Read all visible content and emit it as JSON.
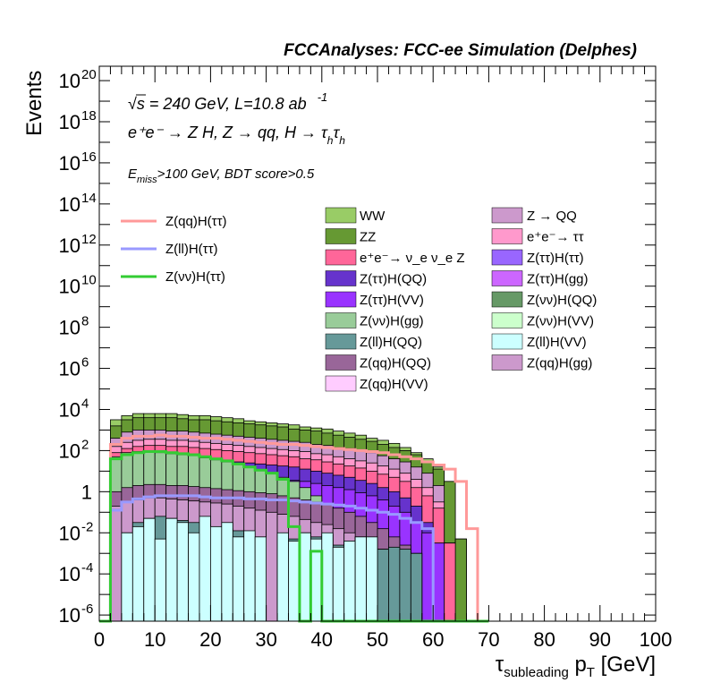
{
  "header": "FCCAnalyses: FCC-ee Simulation (Delphes)",
  "info": {
    "line1": "√s = 240 GeV, L=10.8 ab",
    "line1_sup": "-1",
    "line2": "e⁺e⁻ → Z H, Z → qq, H → τ",
    "line2_sub1": "h",
    "line2_tau": "τ",
    "line2_sub2": "h",
    "line3_pre": "E",
    "line3_sub": "miss",
    "line3_post": ">100 GeV, BDT score>0.5"
  },
  "chart_data": {
    "type": "area",
    "title": "",
    "xlabel": "τ",
    "xlabel_sub": "subleading",
    "xlabel_post": " p",
    "xlabel_sub2": "T",
    "xlabel_unit": " [GeV]",
    "ylabel": "Events",
    "xlim": [
      0,
      100
    ],
    "ylim_log10": [
      -6.3,
      20.7
    ],
    "y_log": true,
    "x_ticks": [
      "0",
      "10",
      "20",
      "30",
      "40",
      "50",
      "60",
      "70",
      "80",
      "90",
      "100"
    ],
    "y_ticks": [
      {
        "base": "10",
        "exp": "20",
        "log": 20
      },
      {
        "base": "10",
        "exp": "18",
        "log": 18
      },
      {
        "base": "10",
        "exp": "16",
        "log": 16
      },
      {
        "base": "10",
        "exp": "14",
        "log": 14
      },
      {
        "base": "10",
        "exp": "12",
        "log": 12
      },
      {
        "base": "10",
        "exp": "10",
        "log": 10
      },
      {
        "base": "10",
        "exp": "8",
        "log": 8
      },
      {
        "base": "10",
        "exp": "6",
        "log": 6
      },
      {
        "base": "10",
        "exp": "4",
        "log": 4
      },
      {
        "base": "10",
        "exp": "2",
        "log": 2
      },
      {
        "base": "1",
        "exp": "",
        "log": 0
      },
      {
        "base": "10",
        "exp": "-2",
        "log": -2
      },
      {
        "base": "10",
        "exp": "-4",
        "log": -4
      },
      {
        "base": "10",
        "exp": "-6",
        "log": -6
      }
    ],
    "bin_edges_start": 0,
    "bin_width": 2,
    "stack_tops_log10": [
      {
        "name": "WW",
        "color": "#99cc66",
        "values": [
          -6.3,
          3.5,
          3.7,
          3.8,
          3.8,
          3.8,
          3.8,
          3.75,
          3.7,
          3.7,
          3.65,
          3.6,
          3.55,
          3.45,
          3.4,
          3.35,
          3.3,
          3.25,
          3.15,
          3.1,
          3.05,
          2.95,
          2.85,
          2.75,
          2.6,
          2.5,
          2.35,
          2.15,
          1.9,
          1.6,
          1.2,
          0.5,
          -2.3,
          -6.3
        ]
      },
      {
        "name": "ZZ",
        "color": "#669933",
        "values": [
          -6.3,
          3.2,
          3.5,
          3.6,
          3.6,
          3.6,
          3.6,
          3.55,
          3.5,
          3.5,
          3.45,
          3.4,
          3.35,
          3.3,
          3.25,
          3.2,
          3.15,
          3.05,
          3.0,
          2.95,
          2.85,
          2.75,
          2.65,
          2.55,
          2.45,
          2.3,
          2.15,
          2.0,
          1.8,
          1.5,
          1.1,
          0.5,
          -2.3,
          -6.3
        ]
      },
      {
        "name": "Z → QQ",
        "color": "#cc99cc",
        "values": [
          -6.3,
          2.6,
          2.9,
          3.0,
          3.0,
          3.0,
          2.95,
          2.95,
          2.9,
          2.85,
          2.8,
          2.75,
          2.7,
          2.65,
          2.6,
          2.55,
          2.5,
          2.45,
          2.4,
          2.3,
          2.25,
          2.15,
          2.1,
          2.0,
          1.9,
          1.75,
          1.6,
          1.45,
          1.2,
          0.9,
          0.3,
          -2.5,
          -6.3,
          -6.3
        ]
      },
      {
        "name": "e⁺e⁻ → ττ",
        "color": "#ff99cc",
        "values": [
          -6.3,
          2.2,
          2.4,
          2.5,
          2.55,
          2.55,
          2.5,
          2.5,
          2.45,
          2.4,
          2.35,
          2.3,
          2.25,
          2.2,
          2.15,
          2.1,
          2.05,
          2.0,
          1.95,
          1.85,
          1.8,
          1.7,
          1.6,
          1.5,
          1.4,
          1.25,
          1.1,
          0.9,
          0.6,
          0.2,
          -0.5,
          -2.5,
          -6.3,
          -6.3
        ]
      },
      {
        "name": "e⁺e⁻ → ν_e ν_e Z",
        "color": "#ff6699",
        "values": [
          -6.3,
          1.9,
          2.1,
          2.2,
          2.25,
          2.25,
          2.2,
          2.2,
          2.15,
          2.1,
          2.05,
          2.0,
          1.95,
          1.9,
          1.85,
          1.8,
          1.75,
          1.7,
          1.6,
          1.55,
          1.45,
          1.35,
          1.25,
          1.15,
          1.0,
          0.85,
          0.7,
          0.5,
          0.2,
          -0.2,
          -0.8,
          -2.5,
          -6.3,
          -6.3
        ]
      },
      {
        "name": "Z(ττ)H(QQ)",
        "color": "#6633cc",
        "values": [
          -6.3,
          1.3,
          1.6,
          1.7,
          1.75,
          1.75,
          1.7,
          1.7,
          1.65,
          1.6,
          1.55,
          1.5,
          1.45,
          1.4,
          1.35,
          1.3,
          1.25,
          1.2,
          1.1,
          1.0,
          0.9,
          0.8,
          0.7,
          0.55,
          0.4,
          0.2,
          0.0,
          -0.3,
          -0.7,
          -1.5,
          -2.5,
          -6.3,
          -6.3,
          -6.3
        ]
      },
      {
        "name": "Z(ττ)H(VV)",
        "color": "#9933ff",
        "values": [
          -6.3,
          0.8,
          1.0,
          1.1,
          1.15,
          1.15,
          1.1,
          1.1,
          1.05,
          1.0,
          0.95,
          0.9,
          0.85,
          0.8,
          0.75,
          0.7,
          0.65,
          0.55,
          0.5,
          0.4,
          0.3,
          0.2,
          0.1,
          -0.05,
          -0.2,
          -0.4,
          -0.7,
          -1.0,
          -1.5,
          -2.0,
          -2.5,
          -6.3,
          -6.3,
          -6.3
        ]
      },
      {
        "name": "Z(νν)H(gg)",
        "color": "#99cc99",
        "values": [
          -6.3,
          1.7,
          1.9,
          1.95,
          1.95,
          1.9,
          1.85,
          1.8,
          1.75,
          1.65,
          1.55,
          1.45,
          1.35,
          1.2,
          1.05,
          0.9,
          0.7,
          0.5,
          0.2,
          -0.2,
          -0.8,
          -1.5,
          -2.5,
          -6.3,
          -6.3,
          -6.3,
          -6.3,
          -6.3,
          -6.3,
          -6.3,
          -6.3,
          -6.3,
          -6.3,
          -6.3
        ]
      },
      {
        "name": "Z(qq)H(QQ)",
        "color": "#996699",
        "values": [
          -6.3,
          0.0,
          0.2,
          0.3,
          0.35,
          0.35,
          0.3,
          0.3,
          0.25,
          0.2,
          0.15,
          0.1,
          0.05,
          0.0,
          -0.05,
          -0.1,
          -0.2,
          -0.3,
          -0.4,
          -0.5,
          -0.6,
          -0.8,
          -1.0,
          -1.2,
          -1.5,
          -1.8,
          -2.2,
          -2.6,
          -3.0,
          -6.3,
          -6.3,
          -6.3,
          -6.3,
          -6.3
        ]
      },
      {
        "name": "Z(qq)H(gg)",
        "color": "#cc99cc",
        "values": [
          -6.3,
          -0.7,
          -0.5,
          -0.4,
          -0.3,
          -0.3,
          -0.35,
          -0.4,
          -0.45,
          -0.5,
          -0.55,
          -0.6,
          -0.7,
          -0.8,
          -0.9,
          -1.0,
          -1.1,
          -1.2,
          -1.35,
          -1.5,
          -1.6,
          -1.8,
          -2.0,
          -2.2,
          -2.5,
          -2.8,
          -3.2,
          -3.6,
          -6.3,
          -6.3,
          -6.3,
          -6.3,
          -6.3,
          -6.3
        ]
      },
      {
        "name": "Z(ll)H(QQ)",
        "color": "#669999",
        "values": [
          -6.3,
          -6.3,
          -2.0,
          -1.5,
          -1.3,
          -1.2,
          -1.3,
          -1.4,
          -1.5,
          -1.6,
          -1.7,
          -1.8,
          -1.9,
          -2.0,
          -2.2,
          -6.3,
          -2.1,
          -2.3,
          -2.0,
          -2.2,
          -2.1,
          -2.6,
          -2.4,
          -2.2,
          -2.3,
          -2.8,
          -2.7,
          -2.8,
          -3.0,
          -6.3,
          -6.3,
          -6.3,
          -6.3,
          -6.3
        ]
      },
      {
        "name": "Z(ll)H(VV)",
        "color": "#ccffff",
        "values": [
          -6.3,
          -6.3,
          -2.0,
          -1.7,
          -1.3,
          -2.3,
          -1.3,
          -1.5,
          -2.0,
          -1.2,
          -1.7,
          -1.5,
          -2.2,
          -1.9,
          -2.2,
          -6.3,
          -2.0,
          -2.4,
          -2.0,
          -2.3,
          -2.0,
          -2.7,
          -2.4,
          -2.2,
          -2.2,
          -6.3,
          -6.3,
          -6.3,
          -6.3,
          -6.3,
          -6.3,
          -6.3,
          -6.3,
          -6.3
        ]
      }
    ],
    "lines_log10": [
      {
        "name": "Z(qq)H(ττ)",
        "color": "#ff9999",
        "values": [
          -6.3,
          2.3,
          2.6,
          2.7,
          2.7,
          2.75,
          2.7,
          2.7,
          2.65,
          2.6,
          2.6,
          2.55,
          2.5,
          2.45,
          2.4,
          2.35,
          2.3,
          2.3,
          2.25,
          2.2,
          2.15,
          2.1,
          2.05,
          2.0,
          1.95,
          1.9,
          1.8,
          1.7,
          1.6,
          1.45,
          1.3,
          1.1,
          0.5,
          -1.8,
          -6.3
        ]
      },
      {
        "name": "Z(ll)H(ττ)",
        "color": "#9999ff",
        "values": [
          -6.3,
          -0.9,
          -0.5,
          -0.35,
          -0.25,
          -0.2,
          -0.2,
          -0.2,
          -0.2,
          -0.25,
          -0.3,
          -0.3,
          -0.3,
          -0.35,
          -0.35,
          -0.4,
          -0.4,
          -0.45,
          -0.5,
          -0.55,
          -0.6,
          -0.65,
          -0.7,
          -0.8,
          -0.9,
          -1.0,
          -1.1,
          -1.3,
          -1.5,
          -1.8,
          -6.3,
          -6.3,
          -6.3,
          -6.3,
          -6.3
        ]
      },
      {
        "name": "Z(νν)H(ττ)",
        "color": "#33cc33",
        "values": [
          -6.3,
          1.6,
          1.8,
          1.9,
          1.95,
          1.95,
          1.9,
          1.85,
          1.8,
          1.7,
          1.6,
          1.5,
          1.35,
          1.2,
          1.05,
          0.9,
          0.6,
          -1.7,
          -6.3,
          -2.9,
          -6.3,
          -6.3,
          -6.3,
          -6.3,
          -6.3,
          -6.3,
          -6.3,
          -6.3,
          -6.3,
          -6.3,
          -6.3,
          -6.3,
          -6.3,
          -6.3,
          -6.3
        ]
      }
    ],
    "legend_lines": [
      {
        "label": "Z(qq)H(ττ)",
        "color": "#ff9999"
      },
      {
        "label": "Z(ll)H(ττ)",
        "color": "#9999ff"
      },
      {
        "label": "Z(νν)H(ττ)",
        "color": "#33cc33"
      }
    ],
    "legend_col1": [
      {
        "label": "WW",
        "color": "#99cc66"
      },
      {
        "label": "ZZ",
        "color": "#669933"
      },
      {
        "label": "e⁺e⁻→ ν_e ν_e Z",
        "color": "#ff6699"
      },
      {
        "label": "Z(ττ)H(QQ)",
        "color": "#6633cc"
      },
      {
        "label": "Z(ττ)H(VV)",
        "color": "#9933ff"
      },
      {
        "label": "Z(νν)H(gg)",
        "color": "#99cc99"
      },
      {
        "label": "Z(ll)H(QQ)",
        "color": "#669999"
      },
      {
        "label": "Z(qq)H(QQ)",
        "color": "#996699"
      },
      {
        "label": "Z(qq)H(VV)",
        "color": "#ffccff"
      }
    ],
    "legend_col2": [
      {
        "label": "Z → QQ",
        "color": "#cc99cc"
      },
      {
        "label": "e⁺e⁻→ ττ",
        "color": "#ff99cc"
      },
      {
        "label": "Z(ττ)H(ττ)",
        "color": "#9966ff"
      },
      {
        "label": "Z(ττ)H(gg)",
        "color": "#cc66ff"
      },
      {
        "label": "Z(νν)H(QQ)",
        "color": "#669966"
      },
      {
        "label": "Z(νν)H(VV)",
        "color": "#ccffcc"
      },
      {
        "label": "Z(ll)H(VV)",
        "color": "#ccffff"
      },
      {
        "label": "Z(qq)H(gg)",
        "color": "#cc99cc"
      }
    ]
  }
}
